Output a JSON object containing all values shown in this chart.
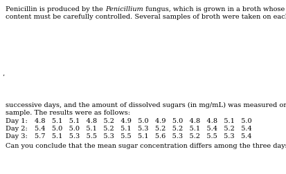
{
  "prefix1": "Penicillin is produced by the ",
  "italic1": "Penicillium",
  "suffix1": " fungus, which is grown in a broth whose sugar",
  "line2": "content must be carefully controlled. Several samples of broth were taken on each of three",
  "para2_line1": "successive days, and the amount of dissolved sugars (in mg/mL) was measured on each",
  "para2_line2": "sample. The results were as follows:",
  "day1_label": "Day 1:",
  "day2_label": "Day 2:",
  "day3_label": "Day 3:",
  "day1_values": [
    4.8,
    5.1,
    5.1,
    4.8,
    5.2,
    4.9,
    5.0,
    4.9,
    5.0,
    4.8,
    4.8,
    5.1,
    5.0
  ],
  "day2_values": [
    5.4,
    5.0,
    5.0,
    5.1,
    5.2,
    5.1,
    5.3,
    5.2,
    5.2,
    5.1,
    5.4,
    5.2,
    5.4
  ],
  "day3_values": [
    5.7,
    5.1,
    5.3,
    5.5,
    5.3,
    5.5,
    5.1,
    5.6,
    5.3,
    5.2,
    5.5,
    5.3,
    5.4
  ],
  "question": "Can you conclude that the mean sugar concentration differs among the three days?",
  "corner_mark": "’",
  "bg_color": "#ffffff",
  "text_color": "#000000",
  "font_size": 7.0,
  "serif_family": "DejaVu Serif"
}
